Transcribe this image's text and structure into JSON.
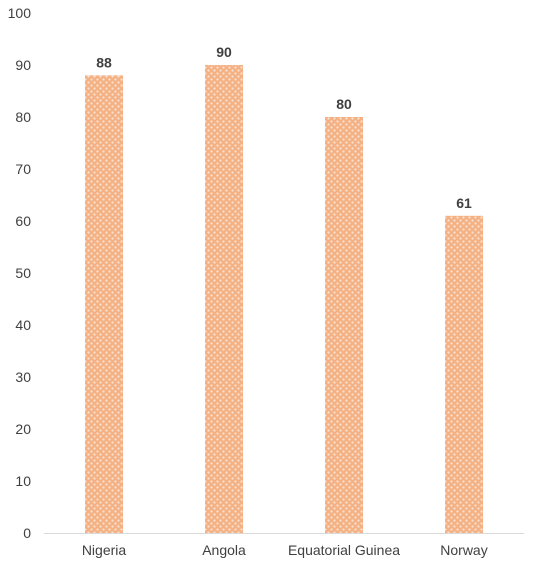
{
  "chart_data": {
    "type": "bar",
    "categories": [
      "Nigeria",
      "Angola",
      "Equatorial Guinea",
      "Norway"
    ],
    "values": [
      88,
      90,
      80,
      61
    ],
    "title": "",
    "xlabel": "",
    "ylabel": "",
    "ylim": [
      0,
      100
    ],
    "yticks": [
      0,
      10,
      20,
      30,
      40,
      50,
      60,
      70,
      80,
      90,
      100
    ],
    "grid": false,
    "legend": "none",
    "data_labels": true,
    "bar_color": "#F4B183",
    "bar_pattern_color": "#E6905A"
  }
}
